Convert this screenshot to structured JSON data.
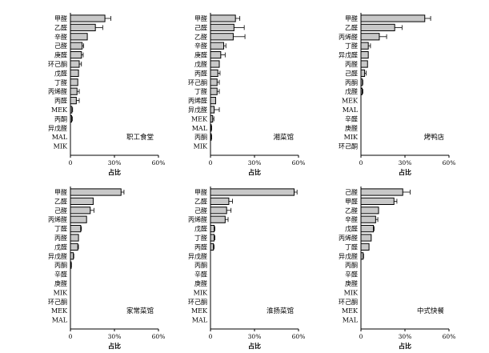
{
  "chart_data": [
    {
      "type": "bar",
      "title": "职工食堂",
      "xlabel": "占比",
      "xticks": [
        "0",
        "30%",
        "60%"
      ],
      "xlim": [
        0,
        60
      ],
      "categories": [
        "甲醛",
        "乙醛",
        "辛醛",
        "己醛",
        "庚醛",
        "环己酮",
        "戊醛",
        "丁醛",
        "丙烯醛",
        "丙醛",
        "MEK",
        "丙酮",
        "异戊醛",
        "MAL",
        "MIK"
      ],
      "values": [
        23.5,
        17,
        11.5,
        8,
        7.5,
        6,
        5.5,
        5,
        4.5,
        4,
        1,
        0.8,
        0,
        0,
        0
      ],
      "errors": [
        4,
        5,
        0,
        1,
        1.2,
        1.5,
        0,
        0,
        1.5,
        2,
        0.5,
        0.5,
        0,
        0,
        0
      ]
    },
    {
      "type": "bar",
      "title": "湘菜馆",
      "xlabel": "占比",
      "xticks": [
        "0",
        "30%",
        "60%"
      ],
      "xlim": [
        0,
        60
      ],
      "categories": [
        "甲醛",
        "己醛",
        "乙醛",
        "辛醛",
        "庚醛",
        "戊醛",
        "丙醛",
        "环己酮",
        "丁醛",
        "丙烯醛",
        "异戊醛",
        "MEK",
        "MAL",
        "丙酮",
        "MIK"
      ],
      "values": [
        17,
        16,
        15.5,
        9,
        7,
        6,
        5,
        4.5,
        4.5,
        3.5,
        2.5,
        1.5,
        0.5,
        0.5,
        0
      ],
      "errors": [
        3,
        7,
        8,
        1.5,
        3,
        0,
        1.5,
        1.5,
        1.5,
        0,
        3.5,
        0.8,
        0.3,
        0.3,
        0
      ]
    },
    {
      "type": "bar",
      "title": "烤鸭店",
      "xlabel": "占比",
      "xticks": [
        "0",
        "30%",
        "60%"
      ],
      "xlim": [
        0,
        60
      ],
      "categories": [
        "甲醛",
        "乙醛",
        "丙烯醛",
        "丁醛",
        "异戊醛",
        "丙醛",
        "己醛",
        "丙酮",
        "戊醛",
        "MEK",
        "MAL",
        "辛醛",
        "庚醛",
        "MIK",
        "环己酮"
      ],
      "values": [
        43.5,
        23,
        12.5,
        5,
        5,
        4.5,
        2.5,
        1,
        0.8,
        0,
        0,
        0,
        0,
        0,
        0
      ],
      "errors": [
        4,
        5,
        5,
        1.5,
        0,
        0,
        1,
        0.3,
        0.5,
        0,
        0,
        0,
        0,
        0,
        0
      ]
    },
    {
      "type": "bar",
      "title": "家常菜馆",
      "xlabel": "占比",
      "xticks": [
        "0",
        "30%",
        "60%"
      ],
      "xlim": [
        0,
        60
      ],
      "categories": [
        "甲醛",
        "乙醛",
        "己醛",
        "丙烯醛",
        "丁醛",
        "丙醛",
        "戊醛",
        "异戊醛",
        "丙酮",
        "辛醛",
        "庚醛",
        "MIK",
        "环己酮",
        "MEK",
        "MAL"
      ],
      "values": [
        34.5,
        15.5,
        13.5,
        11,
        7,
        5.5,
        5,
        2,
        0.5,
        0,
        0,
        0,
        0,
        0,
        0
      ],
      "errors": [
        2,
        0,
        2.5,
        0,
        0.5,
        0,
        0.5,
        0.3,
        0.2,
        0,
        0,
        0,
        0,
        0,
        0
      ]
    },
    {
      "type": "bar",
      "title": "淮扬菜馆",
      "xlabel": "占比",
      "xticks": [
        "0",
        "30%",
        "60%"
      ],
      "xlim": [
        0,
        60
      ],
      "categories": [
        "甲醛",
        "乙醛",
        "己醛",
        "丙烯醛",
        "戊醛",
        "丁醛",
        "丙醛",
        "异戊醛",
        "丙酮",
        "辛醛",
        "庚醛",
        "MIK",
        "环己酮",
        "MEK",
        "MAL"
      ],
      "values": [
        57,
        12.5,
        11,
        10,
        2.5,
        2.5,
        2,
        0,
        0,
        0,
        0,
        0,
        0,
        0,
        0
      ],
      "errors": [
        2,
        2.5,
        3,
        2,
        0.5,
        0.5,
        0.5,
        0,
        0,
        0,
        0,
        0,
        0,
        0,
        0
      ]
    },
    {
      "type": "bar",
      "title": "中式快餐",
      "xlabel": "占比",
      "xticks": [
        "0",
        "30%",
        "60%"
      ],
      "xlim": [
        0,
        60
      ],
      "categories": [
        "己醛",
        "甲醛",
        "乙醛",
        "辛醛",
        "戊醛",
        "丙烯醛",
        "丁醛",
        "异戊醛",
        "丙酮",
        "辛醛",
        "庚醛",
        "MIK",
        "环己酮",
        "MEK",
        "MAL"
      ],
      "values": [
        28.5,
        22.5,
        12,
        10,
        8.5,
        7,
        5.5,
        1.5,
        0,
        0,
        0,
        0,
        0,
        0,
        0
      ],
      "errors": [
        5,
        2,
        0,
        1.5,
        0.5,
        0,
        0,
        0.3,
        0,
        0,
        0,
        0,
        0,
        0,
        0
      ]
    }
  ]
}
